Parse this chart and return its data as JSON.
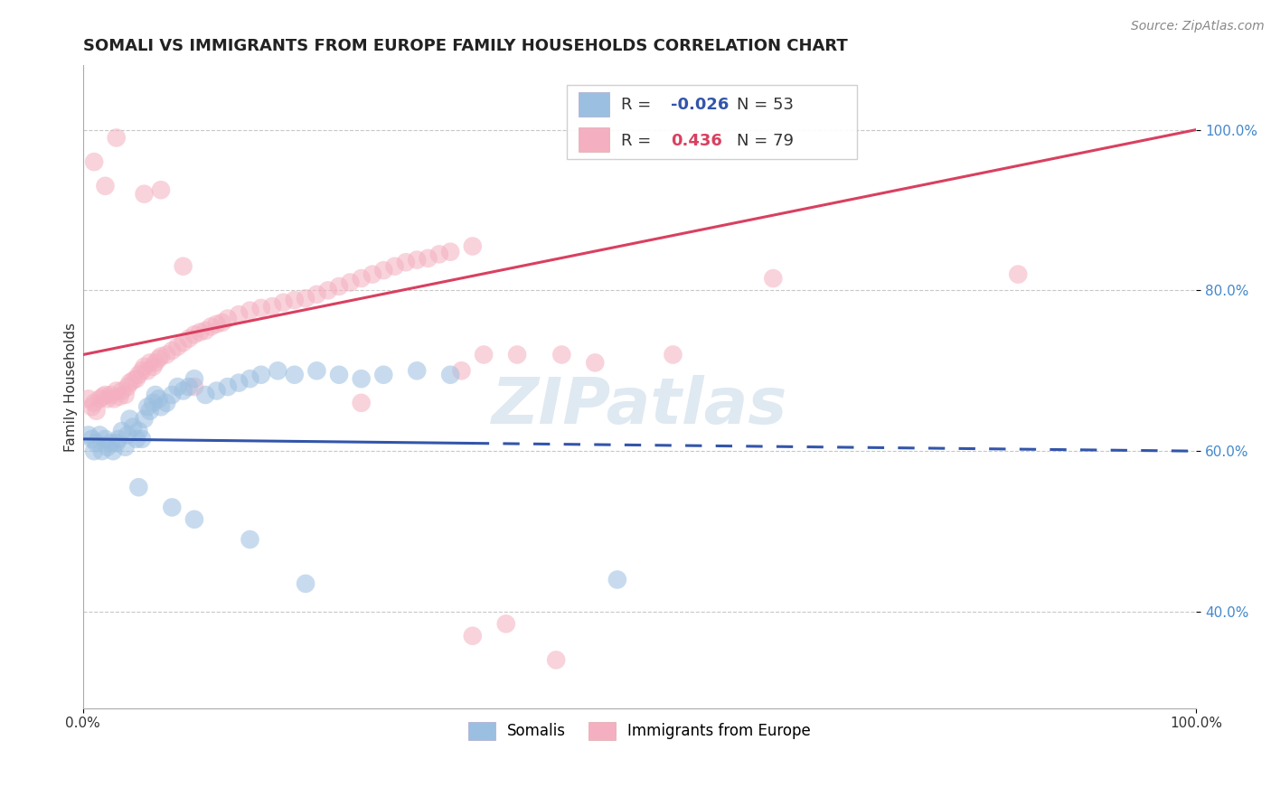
{
  "title": "SOMALI VS IMMIGRANTS FROM EUROPE FAMILY HOUSEHOLDS CORRELATION CHART",
  "source": "Source: ZipAtlas.com",
  "ylabel": "Family Households",
  "watermark": "ZIPatlas",
  "legend_somali": "Somalis",
  "legend_europe": "Immigrants from Europe",
  "somali_R": -0.026,
  "somali_N": 53,
  "europe_R": 0.436,
  "europe_N": 79,
  "xlim": [
    0.0,
    1.0
  ],
  "ylim": [
    0.28,
    1.08
  ],
  "yticks": [
    0.4,
    0.6,
    0.8,
    1.0
  ],
  "ytick_labels": [
    "40.0%",
    "60.0%",
    "80.0%",
    "100.0%"
  ],
  "xtick_labels": [
    "0.0%",
    "100.0%"
  ],
  "grid_color": "#c8c8c8",
  "background_color": "#ffffff",
  "somali_color": "#9bbfe0",
  "europe_color": "#f4afc0",
  "somali_line_color": "#3355aa",
  "europe_line_color": "#d94060",
  "somali_line_solid_x_end": 0.35,
  "somali_line_start_y": 0.615,
  "somali_line_end_y": 0.6,
  "europe_line_start_y": 0.72,
  "europe_line_end_y": 1.0,
  "somali_scatter_x": [
    0.005,
    0.008,
    0.01,
    0.012,
    0.015,
    0.017,
    0.02,
    0.022,
    0.025,
    0.027,
    0.03,
    0.032,
    0.035,
    0.038,
    0.04,
    0.042,
    0.045,
    0.048,
    0.05,
    0.053,
    0.055,
    0.058,
    0.06,
    0.063,
    0.065,
    0.068,
    0.07,
    0.075,
    0.08,
    0.085,
    0.09,
    0.095,
    0.1,
    0.11,
    0.12,
    0.13,
    0.14,
    0.15,
    0.16,
    0.175,
    0.19,
    0.21,
    0.23,
    0.25,
    0.27,
    0.3,
    0.33,
    0.05,
    0.08,
    0.1,
    0.15,
    0.2,
    0.48
  ],
  "somali_scatter_y": [
    0.62,
    0.615,
    0.6,
    0.61,
    0.62,
    0.6,
    0.615,
    0.605,
    0.61,
    0.6,
    0.61,
    0.615,
    0.625,
    0.605,
    0.62,
    0.64,
    0.63,
    0.615,
    0.625,
    0.615,
    0.64,
    0.655,
    0.65,
    0.66,
    0.67,
    0.665,
    0.655,
    0.66,
    0.67,
    0.68,
    0.675,
    0.68,
    0.69,
    0.67,
    0.675,
    0.68,
    0.685,
    0.69,
    0.695,
    0.7,
    0.695,
    0.7,
    0.695,
    0.69,
    0.695,
    0.7,
    0.695,
    0.555,
    0.53,
    0.515,
    0.49,
    0.435,
    0.44
  ],
  "europe_scatter_x": [
    0.005,
    0.008,
    0.01,
    0.012,
    0.015,
    0.018,
    0.02,
    0.022,
    0.025,
    0.028,
    0.03,
    0.033,
    0.035,
    0.038,
    0.04,
    0.042,
    0.045,
    0.048,
    0.05,
    0.053,
    0.055,
    0.058,
    0.06,
    0.063,
    0.065,
    0.068,
    0.07,
    0.075,
    0.08,
    0.085,
    0.09,
    0.095,
    0.1,
    0.105,
    0.11,
    0.115,
    0.12,
    0.125,
    0.13,
    0.14,
    0.15,
    0.16,
    0.17,
    0.18,
    0.19,
    0.2,
    0.21,
    0.22,
    0.23,
    0.24,
    0.25,
    0.26,
    0.27,
    0.28,
    0.29,
    0.3,
    0.31,
    0.32,
    0.33,
    0.35,
    0.01,
    0.02,
    0.03,
    0.25,
    0.34,
    0.36,
    0.39,
    0.43,
    0.46,
    0.53,
    0.62,
    0.84,
    0.055,
    0.07,
    0.09,
    0.1,
    0.35,
    0.38,
    0.425
  ],
  "europe_scatter_y": [
    0.665,
    0.655,
    0.66,
    0.65,
    0.665,
    0.668,
    0.67,
    0.665,
    0.67,
    0.665,
    0.675,
    0.668,
    0.675,
    0.67,
    0.68,
    0.685,
    0.688,
    0.69,
    0.695,
    0.7,
    0.705,
    0.7,
    0.71,
    0.705,
    0.71,
    0.715,
    0.718,
    0.72,
    0.725,
    0.73,
    0.735,
    0.74,
    0.745,
    0.748,
    0.75,
    0.755,
    0.758,
    0.76,
    0.765,
    0.77,
    0.775,
    0.778,
    0.78,
    0.785,
    0.788,
    0.79,
    0.795,
    0.8,
    0.805,
    0.81,
    0.815,
    0.82,
    0.825,
    0.83,
    0.835,
    0.838,
    0.84,
    0.845,
    0.848,
    0.855,
    0.96,
    0.93,
    0.99,
    0.66,
    0.7,
    0.72,
    0.72,
    0.72,
    0.71,
    0.72,
    0.815,
    0.82,
    0.92,
    0.925,
    0.83,
    0.68,
    0.37,
    0.385,
    0.34
  ],
  "title_fontsize": 13,
  "axis_label_fontsize": 11,
  "tick_fontsize": 11,
  "legend_fontsize": 12,
  "watermark_fontsize": 52,
  "watermark_color": "#b8cfe0",
  "watermark_alpha": 0.45,
  "source_fontsize": 10
}
